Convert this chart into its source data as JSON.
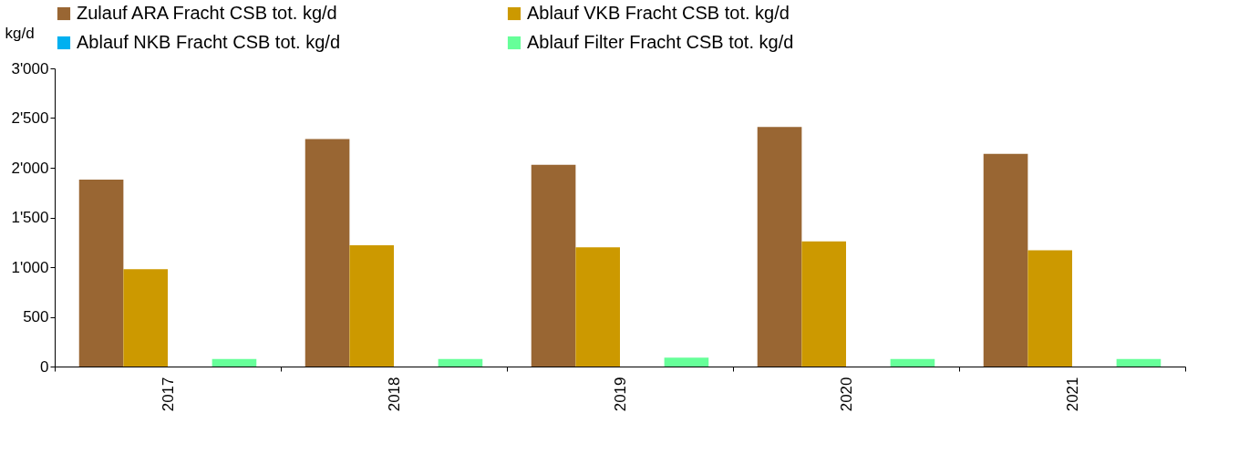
{
  "chart_data": {
    "type": "bar",
    "ylabel": "kg/d",
    "categories": [
      "2017",
      "2018",
      "2019",
      "2020",
      "2021"
    ],
    "series": [
      {
        "name": "Zulauf ARA Fracht CSB tot. kg/d",
        "color": "#996633",
        "values": [
          1880,
          2290,
          2030,
          2410,
          2140
        ]
      },
      {
        "name": "Ablauf VKB Fracht CSB tot. kg/d",
        "color": "#cc9900",
        "values": [
          980,
          1220,
          1200,
          1260,
          1170
        ]
      },
      {
        "name": "Ablauf NKB Fracht CSB tot. kg/d",
        "color": "#00b0f0",
        "values": [
          null,
          null,
          null,
          null,
          null
        ]
      },
      {
        "name": "Ablauf Filter Fracht CSB tot. kg/d",
        "color": "#66ff99",
        "values": [
          75,
          75,
          90,
          75,
          75
        ]
      }
    ],
    "ylim": [
      0,
      3000
    ],
    "yticks": [
      0,
      500,
      {
        "value": 1000,
        "label": "1'000"
      },
      {
        "value": 1500,
        "label": "1'500"
      },
      {
        "value": 2000,
        "label": "2'000"
      },
      {
        "value": 2500,
        "label": "2'500"
      },
      {
        "value": 3000,
        "label": "3'000"
      }
    ],
    "grid": false,
    "legend": "top"
  }
}
